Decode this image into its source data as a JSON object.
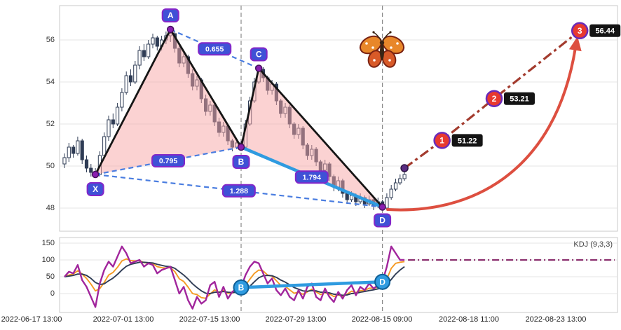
{
  "axes": {
    "main_yticks": [
      "56",
      "54",
      "52",
      "50",
      "48"
    ],
    "kdj_yticks": [
      "150",
      "100",
      "50",
      "0"
    ],
    "xticks": [
      "2022-06-17 13:00",
      "2022-07-01 13:00",
      "2022-07-15 13:00",
      "2022-07-29 13:00",
      "2022-08-15 09:00",
      "2022-08-18 11:00",
      "2022-08-23 13:00"
    ]
  },
  "colors": {
    "candle": "#2f3c55",
    "grid": "#e4e4e4",
    "panel_border": "#c9c9c9",
    "vline": "#8a8a8a",
    "pattern_fill": "#f7a5a5",
    "pattern_edge": "#151515",
    "dashed_line": "#4a7de0",
    "thick_line": "#2f9be0",
    "projection_line": "#a33b2e",
    "curve_arrow": "#dd4f40",
    "label_fill": "#3f51d6",
    "label_border": "#8326c9",
    "point_dot": "#8a1fb0",
    "target_fill": "#e8392f",
    "target_border": "#6a2bb8",
    "tag_fill": "#141414",
    "kdj_point_fill": "#2f9be0",
    "kdj_point_border": "#0f5f96",
    "flat_line": "#8b2f6e",
    "butterfly_wing": "#e8872a",
    "butterfly_wing2": "#d85a28",
    "butterfly_outline": "#7a2313",
    "butterfly_body": "#3a2414"
  },
  "chart_data": [
    {
      "type": "candlestick",
      "panel": "price",
      "ylim": [
        46.9,
        57.6
      ],
      "yticks": [
        56,
        54,
        52,
        50,
        48
      ],
      "candles": [
        [
          50.1,
          50.6,
          49.9,
          50.4
        ],
        [
          50.4,
          51.1,
          50.2,
          50.9
        ],
        [
          50.9,
          51.0,
          50.4,
          50.6
        ],
        [
          50.6,
          51.4,
          50.5,
          51.2
        ],
        [
          51.2,
          51.3,
          50.1,
          50.3
        ],
        [
          50.3,
          50.5,
          49.7,
          49.9
        ],
        [
          49.9,
          50.1,
          49.5,
          49.7
        ],
        [
          49.7,
          49.9,
          49.55,
          49.6
        ],
        [
          49.6,
          50.7,
          49.5,
          50.5
        ],
        [
          50.5,
          51.6,
          50.4,
          51.4
        ],
        [
          51.4,
          52.4,
          51.2,
          52.2
        ],
        [
          52.2,
          52.5,
          51.8,
          52.0
        ],
        [
          52.0,
          53.0,
          51.9,
          52.8
        ],
        [
          52.8,
          53.7,
          52.6,
          53.5
        ],
        [
          53.5,
          54.5,
          53.4,
          54.3
        ],
        [
          54.3,
          54.6,
          53.8,
          54.0
        ],
        [
          54.0,
          55.0,
          53.9,
          54.8
        ],
        [
          54.8,
          55.7,
          54.6,
          55.5
        ],
        [
          55.5,
          55.8,
          55.0,
          55.2
        ],
        [
          55.2,
          56.0,
          55.1,
          55.8
        ],
        [
          55.8,
          56.3,
          55.6,
          56.1
        ],
        [
          56.1,
          56.2,
          55.5,
          55.7
        ],
        [
          55.7,
          56.2,
          55.5,
          56.0
        ],
        [
          56.0,
          56.4,
          55.8,
          56.2
        ],
        [
          56.2,
          56.5,
          55.9,
          56.3
        ],
        [
          56.3,
          56.4,
          55.4,
          55.6
        ],
        [
          55.6,
          55.7,
          54.7,
          54.9
        ],
        [
          54.9,
          55.4,
          54.7,
          55.2
        ],
        [
          55.2,
          55.3,
          54.2,
          54.4
        ],
        [
          54.4,
          54.6,
          53.6,
          53.8
        ],
        [
          53.8,
          54.3,
          53.6,
          54.1
        ],
        [
          54.1,
          54.2,
          53.0,
          53.2
        ],
        [
          53.2,
          53.4,
          52.4,
          52.6
        ],
        [
          52.6,
          53.1,
          52.4,
          52.9
        ],
        [
          52.9,
          53.0,
          51.9,
          52.1
        ],
        [
          52.1,
          52.3,
          51.4,
          51.6
        ],
        [
          51.6,
          52.1,
          51.4,
          51.9
        ],
        [
          51.9,
          52.0,
          51.0,
          51.2
        ],
        [
          51.2,
          51.3,
          50.7,
          50.9
        ],
        [
          50.9,
          51.3,
          50.8,
          51.1
        ],
        [
          51.1,
          51.2,
          50.75,
          50.9
        ],
        [
          50.9,
          52.2,
          50.8,
          52.0
        ],
        [
          52.0,
          53.3,
          51.9,
          53.1
        ],
        [
          53.1,
          54.2,
          53.0,
          54.0
        ],
        [
          54.0,
          54.7,
          53.9,
          54.6
        ],
        [
          54.6,
          54.7,
          54.0,
          54.2
        ],
        [
          54.2,
          54.3,
          53.4,
          53.6
        ],
        [
          53.6,
          54.1,
          53.4,
          53.9
        ],
        [
          53.9,
          54.0,
          52.9,
          53.1
        ],
        [
          53.1,
          53.2,
          52.3,
          52.5
        ],
        [
          52.5,
          53.0,
          52.3,
          52.8
        ],
        [
          52.8,
          52.9,
          51.8,
          52.0
        ],
        [
          52.0,
          52.1,
          51.3,
          51.5
        ],
        [
          51.5,
          52.0,
          51.3,
          51.8
        ],
        [
          51.8,
          51.9,
          50.8,
          51.0
        ],
        [
          51.0,
          51.1,
          50.3,
          50.5
        ],
        [
          50.5,
          51.0,
          50.3,
          50.8
        ],
        [
          50.8,
          50.9,
          50.0,
          50.2
        ],
        [
          50.2,
          50.3,
          49.6,
          49.8
        ],
        [
          49.8,
          50.3,
          49.6,
          50.1
        ],
        [
          50.1,
          50.2,
          49.3,
          49.5
        ],
        [
          49.5,
          49.6,
          48.8,
          49.0
        ],
        [
          49.0,
          49.5,
          48.8,
          49.3
        ],
        [
          49.3,
          49.4,
          48.5,
          48.7
        ],
        [
          48.7,
          48.8,
          48.2,
          48.4
        ],
        [
          48.4,
          48.8,
          48.3,
          48.6
        ],
        [
          48.6,
          48.7,
          48.1,
          48.3
        ],
        [
          48.3,
          48.7,
          48.2,
          48.5
        ],
        [
          48.5,
          48.6,
          48.0,
          48.2
        ],
        [
          48.2,
          48.6,
          48.1,
          48.4
        ],
        [
          48.4,
          48.5,
          47.9,
          48.1
        ],
        [
          48.1,
          48.5,
          48.0,
          48.3
        ],
        [
          48.3,
          48.4,
          47.95,
          48.0
        ],
        [
          48.0,
          48.7,
          47.9,
          48.5
        ],
        [
          48.5,
          49.1,
          48.4,
          48.9
        ],
        [
          48.9,
          49.4,
          48.8,
          49.2
        ],
        [
          49.2,
          49.6,
          49.1,
          49.4
        ],
        [
          49.4,
          49.8,
          49.3,
          49.6
        ]
      ],
      "pattern": {
        "name": "butterfly",
        "points": [
          {
            "name": "X",
            "i": 7,
            "price": 49.6
          },
          {
            "name": "A",
            "i": 24,
            "price": 56.5
          },
          {
            "name": "B",
            "i": 40,
            "price": 50.9
          },
          {
            "name": "C",
            "i": 44,
            "price": 54.65
          },
          {
            "name": "D",
            "i": 72,
            "price": 48.05
          }
        ],
        "solid_edges": [
          [
            "X",
            "A"
          ],
          [
            "A",
            "B"
          ],
          [
            "B",
            "C"
          ],
          [
            "C",
            "D"
          ]
        ],
        "filled_triangles": [
          [
            "X",
            "A",
            "B"
          ],
          [
            "B",
            "C",
            "D"
          ]
        ],
        "ratio_edges": [
          {
            "from": "A",
            "to": "C",
            "label": "0.655",
            "style": "dashed"
          },
          {
            "from": "X",
            "to": "B",
            "label": "0.795",
            "style": "dashed"
          },
          {
            "from": "X",
            "to": "D",
            "label": "1.288",
            "style": "dashed"
          },
          {
            "from": "B",
            "to": "D",
            "label": "1.794",
            "style": "thick"
          }
        ]
      },
      "projection": {
        "start": {
          "i": 77,
          "price": 49.9
        },
        "targets": [
          {
            "label": "1",
            "price_label": "51.22",
            "price": 51.22,
            "i": 85.5
          },
          {
            "label": "2",
            "price_label": "53.21",
            "price": 53.21,
            "i": 97.3
          },
          {
            "label": "3",
            "price_label": "56.44",
            "price": 56.44,
            "i": 116.7
          }
        ]
      },
      "markers": {
        "vlines_at": [
          "B",
          "D"
        ]
      }
    },
    {
      "type": "line",
      "panel": "kdj",
      "label": "KDJ (9,3,3)",
      "ylim": [
        -56,
        160
      ],
      "yticks": [
        150,
        100,
        50,
        0
      ],
      "series": [
        {
          "name": "K",
          "color": "#f59a23",
          "values": [
            50,
            55,
            58,
            68,
            58,
            45,
            28,
            8,
            15,
            33,
            55,
            63,
            78,
            97,
            103,
            98,
            97,
            98,
            92,
            91,
            89,
            80,
            77,
            76,
            77,
            65,
            44,
            36,
            19,
            0,
            -3,
            -12,
            -14,
            -1,
            11,
            4,
            9,
            1,
            2,
            6,
            10,
            25,
            43,
            60,
            70,
            67,
            55,
            52,
            38,
            24,
            21,
            11,
            1,
            4,
            -2,
            5,
            13,
            5,
            -3,
            3,
            -1,
            -9,
            -4,
            -8,
            -2,
            7,
            3,
            9,
            9,
            16,
            16,
            19,
            24,
            43,
            75,
            90,
            93,
            95
          ]
        },
        {
          "name": "D",
          "color": "#2f3c55",
          "values": [
            50,
            52,
            54,
            58,
            58,
            54,
            45,
            33,
            27,
            29,
            38,
            46,
            57,
            70,
            81,
            87,
            90,
            93,
            93,
            92,
            91,
            87,
            84,
            81,
            80,
            75,
            65,
            55,
            43,
            29,
            18,
            8,
            1,
            0,
            4,
            4,
            6,
            4,
            3,
            4,
            6,
            12,
            22,
            35,
            47,
            53,
            54,
            53,
            48,
            40,
            34,
            26,
            18,
            13,
            8,
            7,
            9,
            8,
            4,
            4,
            2,
            -2,
            -3,
            -5,
            -4,
            0,
            1,
            4,
            6,
            9,
            11,
            14,
            17,
            26,
            42,
            58,
            70,
            80
          ]
        },
        {
          "name": "J",
          "color": "#a1259c",
          "values": [
            50,
            65,
            60,
            85,
            40,
            20,
            -10,
            -40,
            30,
            70,
            95,
            80,
            110,
            140,
            120,
            90,
            95,
            100,
            80,
            90,
            85,
            60,
            70,
            75,
            80,
            40,
            0,
            20,
            -20,
            -45,
            -10,
            -30,
            -20,
            25,
            35,
            -10,
            20,
            -15,
            5,
            15,
            18,
            55,
            80,
            95,
            90,
            60,
            30,
            45,
            10,
            -5,
            15,
            -10,
            -20,
            10,
            -15,
            20,
            30,
            -10,
            -20,
            15,
            -10,
            -25,
            5,
            -15,
            10,
            25,
            -5,
            20,
            10,
            30,
            15,
            25,
            35,
            80,
            140,
            120,
            100,
            100
          ]
        }
      ],
      "flat_segment": {
        "value": 100,
        "style": "dash-dot"
      },
      "points": [
        {
          "name": "B",
          "i": 40,
          "value": 18
        },
        {
          "name": "D",
          "i": 72,
          "value": 35
        }
      ],
      "connector": {
        "from": "B",
        "to": "D",
        "style": "thick-blue"
      }
    }
  ]
}
